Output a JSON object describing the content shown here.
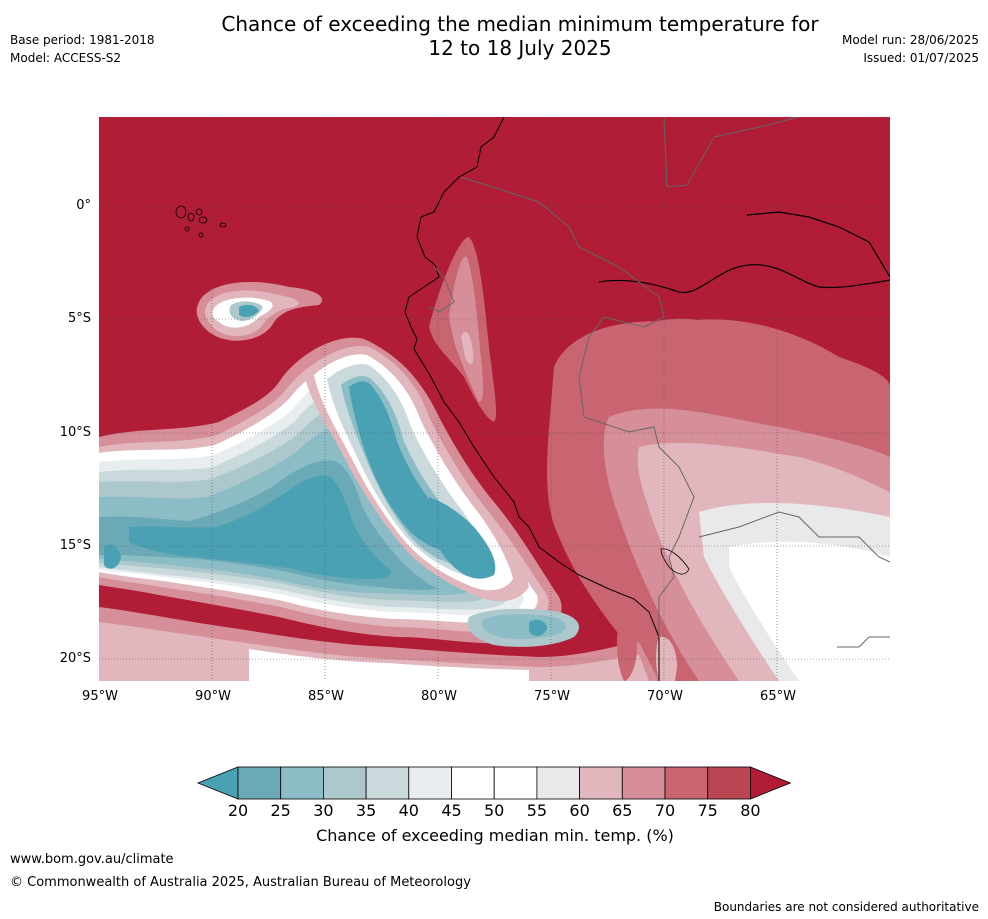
{
  "header": {
    "title_line1": "Chance of exceeding the median minimum temperature for",
    "title_line2": "12 to 18 July 2025",
    "base_period": "Base period: 1981-2018",
    "model": "Model: ACCESS-S2",
    "model_run": "Model run: 28/06/2025",
    "issued": "Issued: 01/07/2025"
  },
  "map": {
    "lon_labels": [
      "95°W",
      "90°W",
      "85°W",
      "80°W",
      "75°W",
      "70°W",
      "65°W"
    ],
    "lat_labels": [
      "0°",
      "5°S",
      "10°S",
      "15°S",
      "20°S"
    ]
  },
  "colorbar": {
    "label": "Chance of exceeding median min. temp. (%)",
    "ticks": [
      "20",
      "25",
      "30",
      "35",
      "40",
      "45",
      "50",
      "55",
      "60",
      "65",
      "70",
      "75",
      "80"
    ],
    "colors": [
      "#4aa1b3",
      "#6aa9b6",
      "#8cbcc6",
      "#adc8cc",
      "#cad9db",
      "#e8eef0",
      "#ffffff",
      "#ffffff",
      "#e9e9ea",
      "#e1b7bd",
      "#d68e98",
      "#c96471",
      "#bb4653",
      "#b11c37"
    ]
  },
  "footer": {
    "website": "www.bom.gov.au/climate",
    "copyright": "© Commonwealth of Australia 2025, Australian Bureau of Meteorology",
    "disclaimer": "Boundaries are not considered authoritative"
  }
}
